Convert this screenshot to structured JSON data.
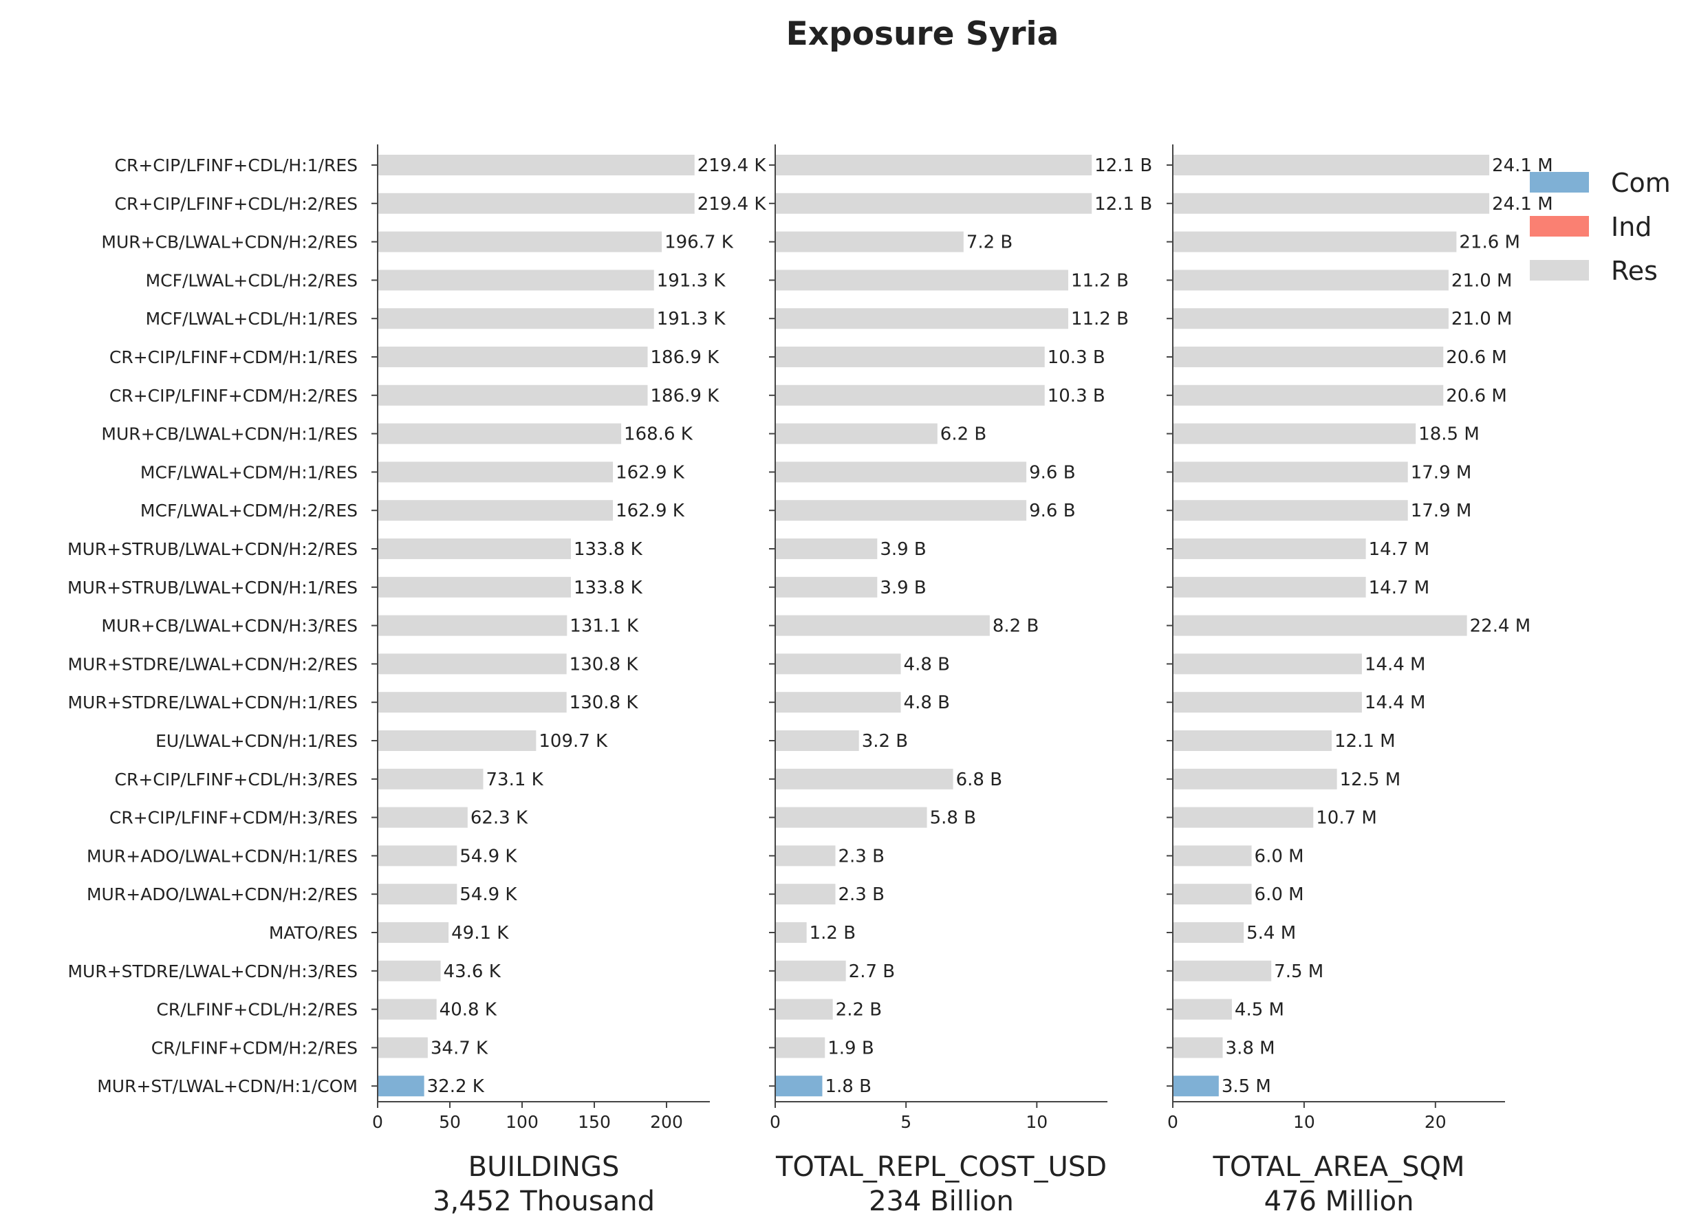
{
  "chart_data": {
    "type": "bar",
    "orientation": "horizontal",
    "title": "Exposure Syria",
    "categories": [
      "CR+CIP/LFINF+CDL/H:1/RES",
      "CR+CIP/LFINF+CDL/H:2/RES",
      "MUR+CB/LWAL+CDN/H:2/RES",
      "MCF/LWAL+CDL/H:2/RES",
      "MCF/LWAL+CDL/H:1/RES",
      "CR+CIP/LFINF+CDM/H:1/RES",
      "CR+CIP/LFINF+CDM/H:2/RES",
      "MUR+CB/LWAL+CDN/H:1/RES",
      "MCF/LWAL+CDM/H:1/RES",
      "MCF/LWAL+CDM/H:2/RES",
      "MUR+STRUB/LWAL+CDN/H:2/RES",
      "MUR+STRUB/LWAL+CDN/H:1/RES",
      "MUR+CB/LWAL+CDN/H:3/RES",
      "MUR+STDRE/LWAL+CDN/H:2/RES",
      "MUR+STDRE/LWAL+CDN/H:1/RES",
      "EU/LWAL+CDN/H:1/RES",
      "CR+CIP/LFINF+CDL/H:3/RES",
      "CR+CIP/LFINF+CDM/H:3/RES",
      "MUR+ADO/LWAL+CDN/H:1/RES",
      "MUR+ADO/LWAL+CDN/H:2/RES",
      "MATO/RES",
      "MUR+STDRE/LWAL+CDN/H:3/RES",
      "CR/LFINF+CDL/H:2/RES",
      "CR/LFINF+CDM/H:2/RES",
      "MUR+ST/LWAL+CDN/H:1/COM"
    ],
    "occupancy": [
      "Res",
      "Res",
      "Res",
      "Res",
      "Res",
      "Res",
      "Res",
      "Res",
      "Res",
      "Res",
      "Res",
      "Res",
      "Res",
      "Res",
      "Res",
      "Res",
      "Res",
      "Res",
      "Res",
      "Res",
      "Res",
      "Res",
      "Res",
      "Res",
      "Com"
    ],
    "colors": {
      "Com": "#7fb0d5",
      "Ind": "#fa8072",
      "Res": "#d9d9d9"
    },
    "legend": {
      "entries": [
        "Com",
        "Ind",
        "Res"
      ],
      "placement": "top-right"
    },
    "panels": [
      {
        "xlabel": "BUILDINGS",
        "total": "3,452 Thousand",
        "xlim": [
          0,
          230
        ],
        "xticks": [
          0,
          50,
          100,
          150,
          200
        ],
        "values": [
          219.4,
          219.4,
          196.7,
          191.3,
          191.3,
          186.9,
          186.9,
          168.6,
          162.9,
          162.9,
          133.8,
          133.8,
          131.1,
          130.8,
          130.8,
          109.7,
          73.1,
          62.3,
          54.9,
          54.9,
          49.1,
          43.6,
          40.8,
          34.7,
          32.2
        ],
        "labels": [
          "219.4 K",
          "219.4 K",
          "196.7 K",
          "191.3 K",
          "191.3 K",
          "186.9 K",
          "186.9 K",
          "168.6 K",
          "162.9 K",
          "162.9 K",
          "133.8 K",
          "133.8 K",
          "131.1 K",
          "130.8 K",
          "130.8 K",
          "109.7 K",
          "73.1 K",
          "62.3 K",
          "54.9 K",
          "54.9 K",
          "49.1 K",
          "43.6 K",
          "40.8 K",
          "34.7 K",
          "32.2 K"
        ]
      },
      {
        "xlabel": "TOTAL_REPL_COST_USD",
        "total": "234 Billion",
        "xlim": [
          0,
          12.7
        ],
        "xticks": [
          0,
          5,
          10
        ],
        "values": [
          12.1,
          12.1,
          7.2,
          11.2,
          11.2,
          10.3,
          10.3,
          6.2,
          9.6,
          9.6,
          3.9,
          3.9,
          8.2,
          4.8,
          4.8,
          3.2,
          6.8,
          5.8,
          2.3,
          2.3,
          1.2,
          2.7,
          2.2,
          1.9,
          1.8
        ],
        "labels": [
          "12.1 B",
          "12.1 B",
          "7.2 B",
          "11.2 B",
          "11.2 B",
          "10.3 B",
          "10.3 B",
          "6.2 B",
          "9.6 B",
          "9.6 B",
          "3.9 B",
          "3.9 B",
          "8.2 B",
          "4.8 B",
          "4.8 B",
          "3.2 B",
          "6.8 B",
          "5.8 B",
          "2.3 B",
          "2.3 B",
          "1.2 B",
          "2.7 B",
          "2.2 B",
          "1.9 B",
          "1.8 B"
        ]
      },
      {
        "xlabel": "TOTAL_AREA_SQM",
        "total": "476 Million",
        "xlim": [
          0,
          25.3
        ],
        "xticks": [
          0,
          10,
          20
        ],
        "values": [
          24.1,
          24.1,
          21.6,
          21.0,
          21.0,
          20.6,
          20.6,
          18.5,
          17.9,
          17.9,
          14.7,
          14.7,
          22.4,
          14.4,
          14.4,
          12.1,
          12.5,
          10.7,
          6.0,
          6.0,
          5.4,
          7.5,
          4.5,
          3.8,
          3.5
        ],
        "labels": [
          "24.1 M",
          "24.1 M",
          "21.6 M",
          "21.0 M",
          "21.0 M",
          "20.6 M",
          "20.6 M",
          "18.5 M",
          "17.9 M",
          "17.9 M",
          "14.7 M",
          "14.7 M",
          "22.4 M",
          "14.4 M",
          "14.4 M",
          "12.1 M",
          "12.5 M",
          "10.7 M",
          "6.0 M",
          "6.0 M",
          "5.4 M",
          "7.5 M",
          "4.5 M",
          "3.8 M",
          "3.5 M"
        ]
      }
    ],
    "grid": false
  }
}
